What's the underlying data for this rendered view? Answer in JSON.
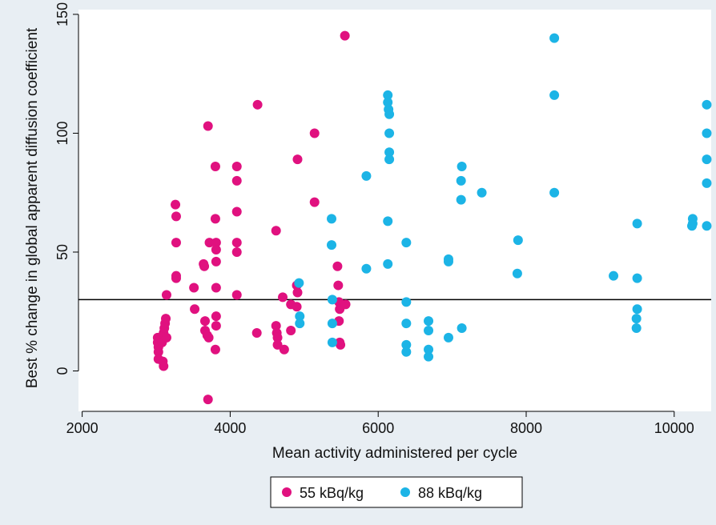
{
  "chart_data": {
    "type": "scatter",
    "title": "",
    "xlabel": "Mean activity administered per cycle",
    "ylabel": "Best % change in global apparent diffusion coefficient",
    "xlim": [
      1950,
      10500
    ],
    "ylim": [
      -17,
      152
    ],
    "x_ticks": [
      2000,
      4000,
      6000,
      8000,
      10000
    ],
    "y_ticks": [
      0,
      50,
      100,
      150
    ],
    "x_tick_labels": [
      "2000",
      "4000",
      "6000",
      "8000",
      "10000"
    ],
    "y_tick_labels": [
      "0",
      "50",
      "100",
      "150"
    ],
    "grid": false,
    "reference_line": {
      "y": 30
    },
    "legend_position": "bottom",
    "series": [
      {
        "name": "55 kBq/kg",
        "color": "#e0117f",
        "points": [
          [
            3020,
            14
          ],
          [
            3020,
            12
          ],
          [
            3030,
            10
          ],
          [
            3030,
            8
          ],
          [
            3030,
            5
          ],
          [
            3060,
            14
          ],
          [
            3080,
            12
          ],
          [
            3090,
            4
          ],
          [
            3100,
            2
          ],
          [
            3100,
            16
          ],
          [
            3110,
            18
          ],
          [
            3120,
            20
          ],
          [
            3130,
            22
          ],
          [
            3140,
            32
          ],
          [
            3140,
            14
          ],
          [
            3260,
            70
          ],
          [
            3270,
            65
          ],
          [
            3270,
            54
          ],
          [
            3270,
            40
          ],
          [
            3270,
            39
          ],
          [
            3510,
            35
          ],
          [
            3520,
            26
          ],
          [
            3640,
            45
          ],
          [
            3650,
            44
          ],
          [
            3660,
            21
          ],
          [
            3660,
            17
          ],
          [
            3690,
            15
          ],
          [
            3710,
            14
          ],
          [
            3700,
            103
          ],
          [
            3700,
            -12
          ],
          [
            3720,
            54
          ],
          [
            3800,
            86
          ],
          [
            3800,
            64
          ],
          [
            3810,
            54
          ],
          [
            3810,
            51
          ],
          [
            3810,
            46
          ],
          [
            3810,
            35
          ],
          [
            3810,
            23
          ],
          [
            3810,
            19
          ],
          [
            3800,
            9
          ],
          [
            4090,
            86
          ],
          [
            4090,
            80
          ],
          [
            4090,
            67
          ],
          [
            4090,
            54
          ],
          [
            4090,
            50
          ],
          [
            4090,
            32
          ],
          [
            4370,
            112
          ],
          [
            4360,
            16
          ],
          [
            4620,
            59
          ],
          [
            4620,
            19
          ],
          [
            4630,
            16
          ],
          [
            4640,
            14
          ],
          [
            4640,
            11
          ],
          [
            4710,
            31
          ],
          [
            4730,
            9
          ],
          [
            4820,
            28
          ],
          [
            4820,
            17
          ],
          [
            4910,
            89
          ],
          [
            4900,
            36
          ],
          [
            4910,
            33
          ],
          [
            4900,
            27
          ],
          [
            5140,
            100
          ],
          [
            5140,
            71
          ],
          [
            5450,
            44
          ],
          [
            5460,
            36
          ],
          [
            5470,
            29
          ],
          [
            5470,
            21
          ],
          [
            5480,
            26
          ],
          [
            5480,
            12
          ],
          [
            5490,
            11
          ],
          [
            5550,
            141
          ],
          [
            5560,
            28
          ]
        ]
      },
      {
        "name": "88 kBq/kg",
        "color": "#1cb4e6",
        "points": [
          [
            4930,
            37
          ],
          [
            4940,
            23
          ],
          [
            4940,
            20
          ],
          [
            5370,
            64
          ],
          [
            5370,
            53
          ],
          [
            5380,
            30
          ],
          [
            5380,
            20
          ],
          [
            5380,
            12
          ],
          [
            5840,
            82
          ],
          [
            5840,
            43
          ],
          [
            6130,
            116
          ],
          [
            6130,
            113
          ],
          [
            6140,
            110
          ],
          [
            6150,
            108
          ],
          [
            6150,
            100
          ],
          [
            6150,
            92
          ],
          [
            6150,
            89
          ],
          [
            6130,
            63
          ],
          [
            6130,
            45
          ],
          [
            6380,
            54
          ],
          [
            6380,
            29
          ],
          [
            6380,
            20
          ],
          [
            6380,
            11
          ],
          [
            6380,
            8
          ],
          [
            6680,
            21
          ],
          [
            6680,
            17
          ],
          [
            6680,
            9
          ],
          [
            6680,
            6
          ],
          [
            6950,
            47
          ],
          [
            6950,
            46
          ],
          [
            6950,
            14
          ],
          [
            7130,
            86
          ],
          [
            7120,
            80
          ],
          [
            7120,
            72
          ],
          [
            7130,
            18
          ],
          [
            7400,
            75
          ],
          [
            7890,
            55
          ],
          [
            7880,
            41
          ],
          [
            8380,
            140
          ],
          [
            8380,
            116
          ],
          [
            8380,
            75
          ],
          [
            9180,
            40
          ],
          [
            9500,
            62
          ],
          [
            9500,
            39
          ],
          [
            9500,
            26
          ],
          [
            9490,
            22
          ],
          [
            9490,
            18
          ],
          [
            10250,
            64
          ],
          [
            10250,
            62
          ],
          [
            10240,
            61
          ],
          [
            10440,
            112
          ],
          [
            10440,
            100
          ],
          [
            10440,
            89
          ],
          [
            10440,
            79
          ],
          [
            10440,
            61
          ]
        ]
      }
    ]
  }
}
